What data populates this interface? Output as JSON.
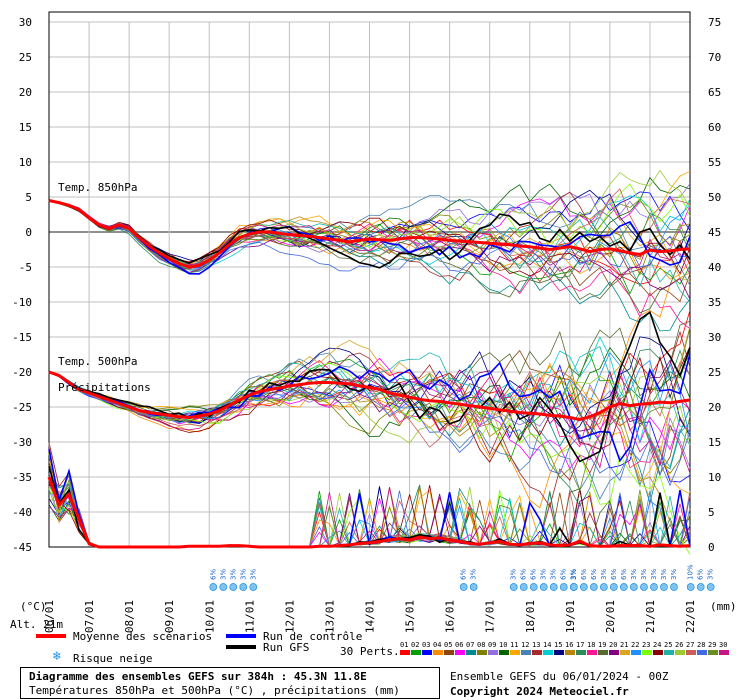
{
  "chart_data": {
    "type": "line",
    "title": "Diagramme des ensembles GEFS sur 384h : 45.3N 11.8E",
    "subtitle": "Températures 850hPa et 500hPa (°C) , précipitations (mm)",
    "left_axis": {
      "label": "(°C)",
      "min": -45,
      "max": 30,
      "ticks": [
        30,
        25,
        20,
        15,
        10,
        5,
        0,
        -5,
        -10,
        -15,
        -20,
        -25,
        -30,
        -35,
        -40,
        -45
      ]
    },
    "right_axis": {
      "label": "(mm)",
      "min": 0,
      "max": 75,
      "ticks": [
        75,
        70,
        65,
        60,
        55,
        50,
        45,
        40,
        35,
        30,
        25,
        20,
        15,
        10,
        5,
        0
      ]
    },
    "x_ticks": [
      "06/01",
      "07/01",
      "08/01",
      "09/01",
      "10/01",
      "11/01",
      "12/01",
      "13/01",
      "14/01",
      "15/01",
      "16/01",
      "17/01",
      "18/01",
      "19/01",
      "20/01",
      "21/01",
      "22/01"
    ],
    "x_hours": [
      0,
      384
    ],
    "annotations": {
      "t850": "Temp. 850hPa",
      "t500": "Temp. 500hPa",
      "precip": "Précipitations",
      "alt": "Alt. 21m"
    },
    "series": [
      {
        "name": "Moyenne des scénarios (850hPa)",
        "color": "#ff0000",
        "hours": [
          0,
          6,
          12,
          18,
          24,
          30,
          36,
          42,
          48,
          54,
          60,
          66,
          72,
          78,
          84,
          90,
          96,
          102,
          108,
          114,
          120,
          126,
          132,
          138,
          144,
          150,
          156,
          162,
          168,
          174,
          180,
          186,
          192,
          198,
          204,
          210,
          216,
          222,
          228,
          234,
          240,
          246,
          252,
          258,
          264,
          270,
          276,
          282,
          288,
          294,
          300,
          306,
          312,
          318,
          324,
          330,
          336,
          342,
          348,
          354,
          360,
          366,
          372,
          378,
          384
        ],
        "values": [
          4.5,
          4.2,
          3.8,
          3.2,
          2.0,
          1.0,
          0.5,
          1.0,
          0.5,
          -0.8,
          -2.0,
          -3.0,
          -3.8,
          -4.5,
          -5.0,
          -4.8,
          -4.0,
          -3.0,
          -1.8,
          -0.8,
          -0.3,
          0.0,
          0.0,
          -0.2,
          -0.4,
          -0.5,
          -0.6,
          -0.8,
          -1.0,
          -1.2,
          -1.4,
          -1.2,
          -1.0,
          -1.1,
          -1.2,
          -1.0,
          -0.8,
          -0.8,
          -0.9,
          -1.0,
          -1.2,
          -1.3,
          -1.4,
          -1.5,
          -1.6,
          -1.7,
          -1.8,
          -2.0,
          -2.1,
          -2.3,
          -2.5,
          -2.3,
          -2.1,
          -2.4,
          -2.8,
          -2.5,
          -2.4,
          -2.7,
          -3.0,
          -3.2,
          -2.6,
          -2.8,
          -2.7,
          -2.5,
          -2.4
        ]
      },
      {
        "name": "Moyenne des scénarios (500hPa)",
        "color": "#ff0000",
        "hours": [
          0,
          6,
          12,
          18,
          24,
          30,
          36,
          42,
          48,
          54,
          60,
          66,
          72,
          78,
          84,
          90,
          96,
          102,
          108,
          114,
          120,
          126,
          132,
          138,
          144,
          150,
          156,
          162,
          168,
          174,
          180,
          186,
          192,
          198,
          204,
          210,
          216,
          222,
          228,
          234,
          240,
          246,
          252,
          258,
          264,
          270,
          276,
          282,
          288,
          294,
          300,
          306,
          312,
          318,
          324,
          330,
          336,
          342,
          348,
          354,
          360,
          366,
          372,
          378,
          384
        ],
        "values": [
          -20.0,
          -20.5,
          -21.5,
          -22.5,
          -23.0,
          -23.5,
          -24.0,
          -24.5,
          -25.0,
          -25.5,
          -25.8,
          -26.0,
          -26.2,
          -26.4,
          -26.5,
          -26.3,
          -26.0,
          -25.5,
          -24.8,
          -24.0,
          -23.3,
          -22.8,
          -22.5,
          -22.3,
          -22.0,
          -21.8,
          -21.6,
          -21.5,
          -21.5,
          -21.6,
          -21.7,
          -22.0,
          -22.2,
          -22.5,
          -23.0,
          -23.3,
          -23.6,
          -23.9,
          -24.1,
          -24.2,
          -24.4,
          -24.6,
          -24.8,
          -25.0,
          -25.2,
          -25.4,
          -25.6,
          -25.8,
          -25.9,
          -26.0,
          -26.2,
          -26.3,
          -26.5,
          -26.8,
          -26.4,
          -25.8,
          -25.0,
          -24.5,
          -24.8,
          -24.6,
          -24.5,
          -24.3,
          -24.4,
          -24.2,
          -24.0
        ]
      },
      {
        "name": "Moyenne des scénarios (précipitations)",
        "color": "#ff0000",
        "unit": "mm",
        "hours": [
          0,
          6,
          12,
          18,
          24,
          30,
          36,
          42,
          48,
          54,
          60,
          66,
          72,
          78,
          84,
          90,
          96,
          102,
          108,
          114,
          120,
          126,
          132,
          138,
          144,
          150,
          156,
          162,
          168,
          174,
          180,
          186,
          192,
          198,
          204,
          210,
          216,
          222,
          228,
          234,
          240,
          246,
          252,
          258,
          264,
          270,
          276,
          282,
          288,
          294,
          300,
          306,
          312,
          318,
          324,
          330,
          336,
          342,
          348,
          354,
          360,
          366,
          372,
          378,
          384
        ],
        "values": [
          10.0,
          6.0,
          7.5,
          4.0,
          0.5,
          0.0,
          0.0,
          0.0,
          0.0,
          0.0,
          0.0,
          0.0,
          0.0,
          0.0,
          0.1,
          0.1,
          0.1,
          0.1,
          0.2,
          0.2,
          0.1,
          0.0,
          0.0,
          0.0,
          0.0,
          0.0,
          0.0,
          0.1,
          0.1,
          0.2,
          0.3,
          0.5,
          0.6,
          0.8,
          1.0,
          1.2,
          1.0,
          1.4,
          1.2,
          1.3,
          1.0,
          0.8,
          0.5,
          0.4,
          0.6,
          0.8,
          0.4,
          0.3,
          0.5,
          0.6,
          0.3,
          0.2,
          0.3,
          0.8,
          0.2,
          0.1,
          0.1,
          0.2,
          0.2,
          0.2,
          0.1,
          0.3,
          0.2,
          0.1,
          0.2
        ]
      }
    ],
    "member_colors": [
      "#ff0000",
      "#00a000",
      "#0000ff",
      "#ff8c00",
      "#8b4513",
      "#ff00ff",
      "#008b8b",
      "#808000",
      "#9370db",
      "#006400",
      "#ffa500",
      "#4682b4",
      "#a52a2a",
      "#00ced1",
      "#000080",
      "#b8860b",
      "#2e8b57",
      "#ff1493",
      "#556b2f",
      "#800080",
      "#daa520",
      "#1e90ff",
      "#7fff00",
      "#8b0000",
      "#20b2aa",
      "#9acd32",
      "#cd5c5c",
      "#4169e1",
      "#6b8e23",
      "#c71585"
    ],
    "snow_risk": [
      {
        "hour": 102,
        "labels": [
          "6%",
          "3%",
          "3%",
          "3%",
          "3%"
        ]
      },
      {
        "hour": 252,
        "labels": [
          "6%",
          "3%"
        ]
      },
      {
        "hour": 282,
        "labels": [
          "3%",
          "6%",
          "6%",
          "3%",
          "3%",
          "6%",
          "3%"
        ]
      },
      {
        "hour": 318,
        "labels": [
          "3%",
          "6%",
          "6%",
          "3%",
          "6%",
          "6%",
          "3%"
        ]
      },
      {
        "hour": 360,
        "labels": [
          "3%",
          "3%",
          "3%",
          "3%"
        ]
      },
      {
        "hour": 388,
        "labels": [
          "10%",
          "6%",
          "3%"
        ]
      }
    ],
    "members_label": "30 Perts.",
    "member_numbers": [
      "01",
      "02",
      "03",
      "04",
      "05",
      "06",
      "07",
      "08",
      "09",
      "10",
      "11",
      "12",
      "13",
      "14",
      "15",
      "16",
      "17",
      "18",
      "19",
      "20",
      "21",
      "22",
      "23",
      "24",
      "25",
      "26",
      "27",
      "28",
      "29",
      "30"
    ]
  },
  "legend": {
    "mean": "Moyenne des scénarios",
    "control": "Run de contrôle",
    "gfs": "Run GFS",
    "snow": "Risque neige"
  },
  "footer": {
    "title": "Diagramme des ensembles GEFS sur 384h : 45.3N 11.8E",
    "subtitle": "Températures 850hPa et 500hPa (°C) , précipitations (mm)",
    "run": "Ensemble GEFS du 06/01/2024 - 00Z",
    "copyright": "Copyright 2024 Meteociel.fr"
  },
  "colors": {
    "mean": "#ff0000",
    "control": "#0000ff",
    "gfs": "#000000",
    "grid": "#c0c0c0",
    "snow": "#1b8ee0"
  }
}
